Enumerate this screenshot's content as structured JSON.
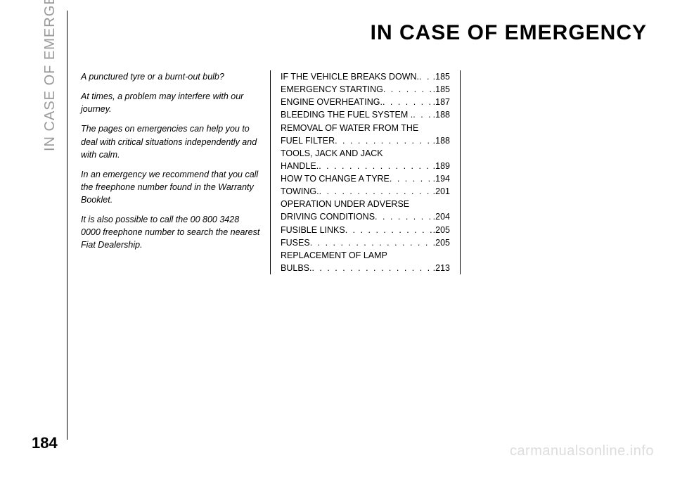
{
  "sidebar_label": "IN CASE OF EMERGENCY",
  "title": "IN CASE OF EMERGENCY",
  "page_number": "184",
  "watermark": "carmanualsonline.info",
  "intro": {
    "p1": "A punctured tyre or a burnt-out bulb?",
    "p2": "At times, a problem may interfere with our journey.",
    "p3": "The pages on emergencies can help you to deal with critical situations independently and with calm.",
    "p4": "In an emergency we recommend that you call the freephone number found in the Warranty Booklet.",
    "p5": "It is also possible to call the 00 800 3428 0000 freephone number to search the nearest Fiat Dealership."
  },
  "toc": [
    {
      "label": "IF THE VEHICLE BREAKS DOWN.",
      "page": ".185"
    },
    {
      "label": "EMERGENCY STARTING",
      "page": ".185"
    },
    {
      "label": "ENGINE OVERHEATING.",
      "page": ".187"
    },
    {
      "label": "BLEEDING THE FUEL SYSTEM .",
      "page": ".188"
    },
    {
      "label": "REMOVAL OF WATER FROM THE",
      "page": ""
    },
    {
      "label": "FUEL FILTER",
      "page": ".188"
    },
    {
      "label": "TOOLS, JACK AND JACK",
      "page": ""
    },
    {
      "label": "HANDLE.",
      "page": ".189"
    },
    {
      "label": "HOW TO CHANGE A TYRE",
      "page": ".194"
    },
    {
      "label": "TOWING.",
      "page": ".201"
    },
    {
      "label": "OPERATION UNDER ADVERSE",
      "page": ""
    },
    {
      "label": "DRIVING CONDITIONS",
      "page": ".204"
    },
    {
      "label": "FUSIBLE LINKS",
      "page": ".205"
    },
    {
      "label": "FUSES",
      "page": ".205"
    },
    {
      "label": "REPLACEMENT OF LAMP",
      "page": ""
    },
    {
      "label": "BULBS.",
      "page": ".213"
    }
  ]
}
